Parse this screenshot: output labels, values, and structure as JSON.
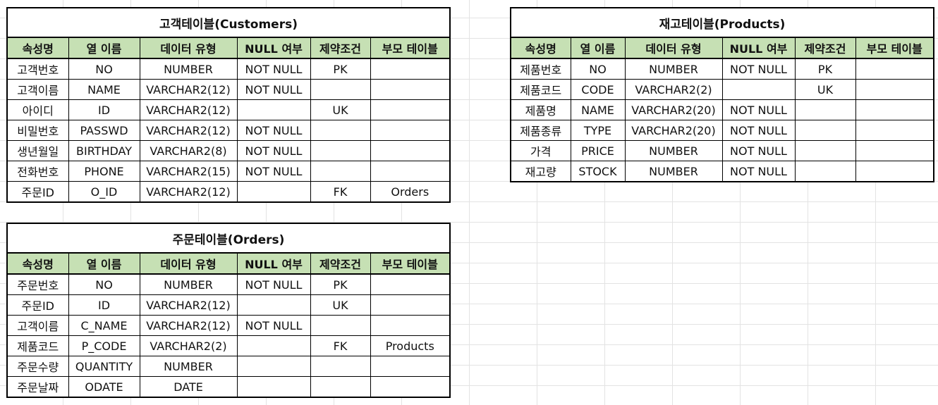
{
  "headers": [
    "속성명",
    "열 이름",
    "데이터 유형",
    "NULL 여부",
    "제약조건",
    "부모 테이블"
  ],
  "customers": {
    "title": "고객테이블(Customers)",
    "rows": [
      [
        "고객번호",
        "NO",
        "NUMBER",
        "NOT NULL",
        "PK",
        ""
      ],
      [
        "고객이름",
        "NAME",
        "VARCHAR2(12)",
        "NOT NULL",
        "",
        ""
      ],
      [
        "아이디",
        "ID",
        "VARCHAR2(12)",
        "",
        "UK",
        ""
      ],
      [
        "비밀번호",
        "PASSWD",
        "VARCHAR2(12)",
        "NOT NULL",
        "",
        ""
      ],
      [
        "생년월일",
        "BIRTHDAY",
        "VARCHAR2(8)",
        "NOT NULL",
        "",
        ""
      ],
      [
        "전화번호",
        "PHONE",
        "VARCHAR2(15)",
        "NOT NULL",
        "",
        ""
      ],
      [
        "주문ID",
        "O_ID",
        "VARCHAR2(12)",
        "",
        "FK",
        "Orders"
      ]
    ]
  },
  "products": {
    "title": "재고테이블(Products)",
    "rows": [
      [
        "제품번호",
        "NO",
        "NUMBER",
        "NOT NULL",
        "PK",
        ""
      ],
      [
        "제품코드",
        "CODE",
        "VARCHAR2(2)",
        "",
        "UK",
        ""
      ],
      [
        "제품명",
        "NAME",
        "VARCHAR2(20)",
        "NOT NULL",
        "",
        ""
      ],
      [
        "제품종류",
        "TYPE",
        "VARCHAR2(20)",
        "NOT NULL",
        "",
        ""
      ],
      [
        "가격",
        "PRICE",
        "NUMBER",
        "NOT NULL",
        "",
        ""
      ],
      [
        "재고량",
        "STOCK",
        "NUMBER",
        "NOT NULL",
        "",
        ""
      ]
    ]
  },
  "orders": {
    "title": "주문테이블(Orders)",
    "rows": [
      [
        "주문번호",
        "NO",
        "NUMBER",
        "NOT NULL",
        "PK",
        ""
      ],
      [
        "주문ID",
        "ID",
        "VARCHAR2(12)",
        "",
        "UK",
        ""
      ],
      [
        "고객이름",
        "C_NAME",
        "VARCHAR2(12)",
        "NOT NULL",
        "",
        ""
      ],
      [
        "제품코드",
        "P_CODE",
        "VARCHAR2(2)",
        "",
        "FK",
        "Products"
      ],
      [
        "주문수량",
        "QUANTITY",
        "NUMBER",
        "",
        "",
        ""
      ],
      [
        "주문날짜",
        "ODATE",
        "DATE",
        "",
        "",
        ""
      ]
    ]
  },
  "colors": {
    "header_fill": "#c6e0b4",
    "border": "#000000",
    "gridline": "#e3e3e3"
  }
}
